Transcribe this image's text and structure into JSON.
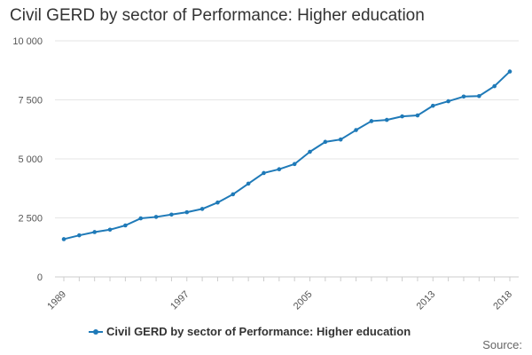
{
  "title": "Civil GERD by sector of Performance: Higher education",
  "source_label": "Source:",
  "colors": {
    "series": "#1f7ab8",
    "grid": "#e6e6e6",
    "axis": "#cccccc"
  },
  "chart_data": {
    "type": "line",
    "title": "Civil GERD by sector of Performance: Higher education",
    "xlabel": "",
    "ylabel": "",
    "x": [
      1989,
      1990,
      1991,
      1992,
      1993,
      1994,
      1995,
      1996,
      1997,
      1998,
      1999,
      2000,
      2001,
      2002,
      2003,
      2004,
      2005,
      2006,
      2007,
      2008,
      2009,
      2010,
      2011,
      2012,
      2013,
      2014,
      2015,
      2016,
      2017,
      2018
    ],
    "x_ticks": [
      1989,
      1997,
      2005,
      2013,
      2018
    ],
    "y_ticks": [
      0,
      2500,
      5000,
      7500,
      10000
    ],
    "y_tick_labels": [
      "0",
      "2 500",
      "5 000",
      "7 500",
      "10 000"
    ],
    "ylim": [
      0,
      10000
    ],
    "xlim": [
      1989,
      2018
    ],
    "grid": true,
    "legend": "bottom",
    "series": [
      {
        "name": "Civil GERD by sector of Performance: Higher education",
        "values": [
          1600,
          1760,
          1900,
          2000,
          2180,
          2480,
          2540,
          2640,
          2740,
          2880,
          3150,
          3500,
          3950,
          4400,
          4560,
          4780,
          5300,
          5720,
          5820,
          6220,
          6600,
          6650,
          6800,
          6840,
          7250,
          7440,
          7640,
          7660,
          8080,
          8700
        ]
      }
    ]
  }
}
